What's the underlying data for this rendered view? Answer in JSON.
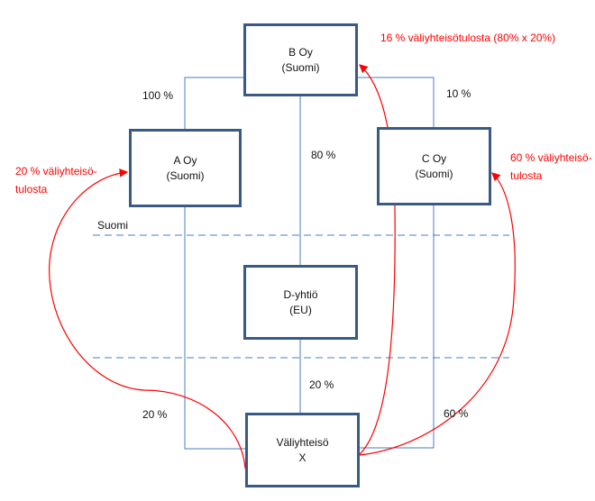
{
  "entities": {
    "b": {
      "name": "B Oy",
      "country": "(Suomi)"
    },
    "a": {
      "name": "A Oy",
      "country": "(Suomi)"
    },
    "c": {
      "name": "C Oy",
      "country": "(Suomi)"
    },
    "d": {
      "name": "D-yhtiö",
      "country": "(EU)"
    },
    "x": {
      "name": "Väliyhteisö",
      "country": "X"
    }
  },
  "ownership": {
    "b_a": "100 %",
    "b_c": "10 %",
    "b_d": "80 %",
    "d_x": "20 %",
    "a_x": "20 %",
    "c_x": "60 %"
  },
  "border_label": "Suomi",
  "income_notes": {
    "b": "16 % väliyhteisötulosta (80% x 20%)",
    "a_line1": "20 % väliyhteisö-",
    "a_line2": "tulosta",
    "c_line1": "60 % väliyhteisö-",
    "c_line2": "tulosta"
  },
  "colors": {
    "box_border": "#3a5a86",
    "line": "#4a7cc0",
    "arrow": "#ff0000"
  }
}
